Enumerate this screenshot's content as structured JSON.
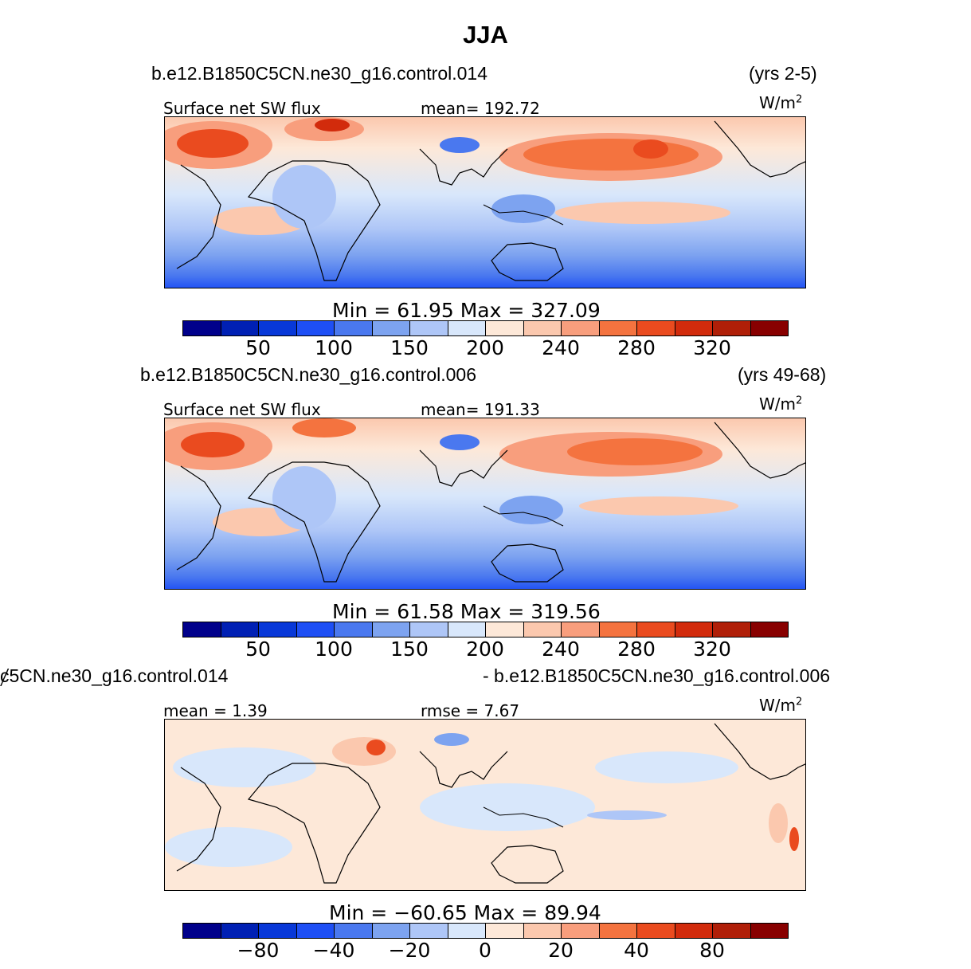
{
  "title": "JJA",
  "units_base": "W/m",
  "units_exp": "2",
  "panels": [
    {
      "case": "b.e12.B1850C5CN.ne30_g16.control.014",
      "years": "(yrs 2-5)",
      "left_label": "Surface net SW flux",
      "center_label": "mean= 192.72",
      "minmax": "Min  =   61.95  Max  =  327.09",
      "colorbar_ticks": [
        "50",
        "100",
        "150",
        "200",
        "240",
        "280",
        "320"
      ]
    },
    {
      "case": "b.e12.B1850C5CN.ne30_g16.control.006",
      "years": "(yrs 49-68)",
      "left_label": "Surface net SW flux",
      "center_label": "mean= 191.33",
      "minmax": "Min  =   61.58  Max  =  319.56",
      "colorbar_ticks": [
        "50",
        "100",
        "150",
        "200",
        "240",
        "280",
        "320"
      ]
    },
    {
      "case": "ȼ5CN.ne30_g16.control.014",
      "years": "- b.e12.B1850C5CN.ne30_g16.control.006",
      "left_label": "mean =     1.39",
      "center_label": "rmse =     7.67",
      "minmax": "Min  = −60.65  Max  =   89.94",
      "colorbar_ticks": [
        "−80",
        "−40",
        "−20",
        "0",
        "20",
        "40",
        "80"
      ]
    }
  ],
  "colorbar_colors": [
    "#00008b",
    "#0020b4",
    "#0838d8",
    "#1e4ff5",
    "#4a78ef",
    "#7da3f0",
    "#aec6f7",
    "#d8e7fb",
    "#fde8d8",
    "#fbc8ae",
    "#f89e7d",
    "#f4733f",
    "#ea4b1f",
    "#d22b0c",
    "#b01f08",
    "#880000"
  ],
  "colors": {
    "ocean_mid": "#d8e7fb",
    "ocean_south": "#2a5bea",
    "subtropical_high": "#f4733f",
    "coastline": "#000000"
  }
}
